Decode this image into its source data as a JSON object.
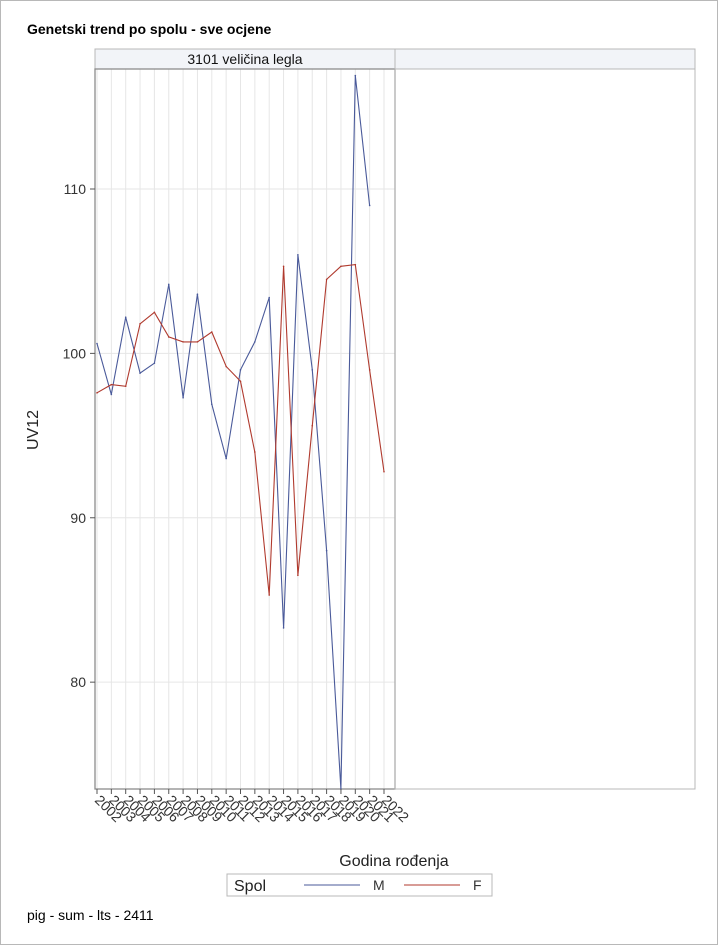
{
  "title": "Genetski trend po spolu - sve ocjene",
  "footnote": "pig - sum - lts - 2411",
  "colors": {
    "M": "#4a5a9a",
    "F": "#b03a2e",
    "grid": "#e6e6e6",
    "frame": "#8c8c8c",
    "header_bg": "#f2f4f8"
  },
  "chart_data": {
    "type": "line",
    "panels": [
      "3101 veličina legla",
      ""
    ],
    "xlabel": "Godina rođenja",
    "ylabel": "UV12",
    "x": [
      "2002",
      "2003",
      "2004",
      "2005",
      "2006",
      "2007",
      "2008",
      "2009",
      "2010",
      "2011",
      "2012",
      "2013",
      "2014",
      "2015",
      "2016",
      "2017",
      "2018",
      "2019",
      "2020",
      "2021",
      "2022"
    ],
    "yticks": [
      80,
      90,
      100,
      110
    ],
    "ylim": [
      73.5,
      117.3
    ],
    "legend": {
      "title": "Spol",
      "position": "bottom"
    },
    "series": [
      {
        "name": "M",
        "values": [
          100.6,
          97.5,
          102.2,
          98.8,
          99.4,
          104.2,
          97.3,
          103.6,
          96.9,
          93.6,
          99.0,
          100.7,
          103.4,
          83.3,
          106.0,
          99.0,
          88.0,
          73.5,
          116.9,
          109.0,
          null
        ]
      },
      {
        "name": "F",
        "values": [
          97.6,
          98.1,
          98.0,
          101.8,
          102.5,
          101.0,
          100.7,
          100.7,
          101.3,
          99.2,
          98.3,
          94.0,
          85.3,
          105.3,
          86.5,
          95.6,
          104.5,
          105.3,
          105.4,
          99.0,
          92.8
        ]
      }
    ]
  }
}
